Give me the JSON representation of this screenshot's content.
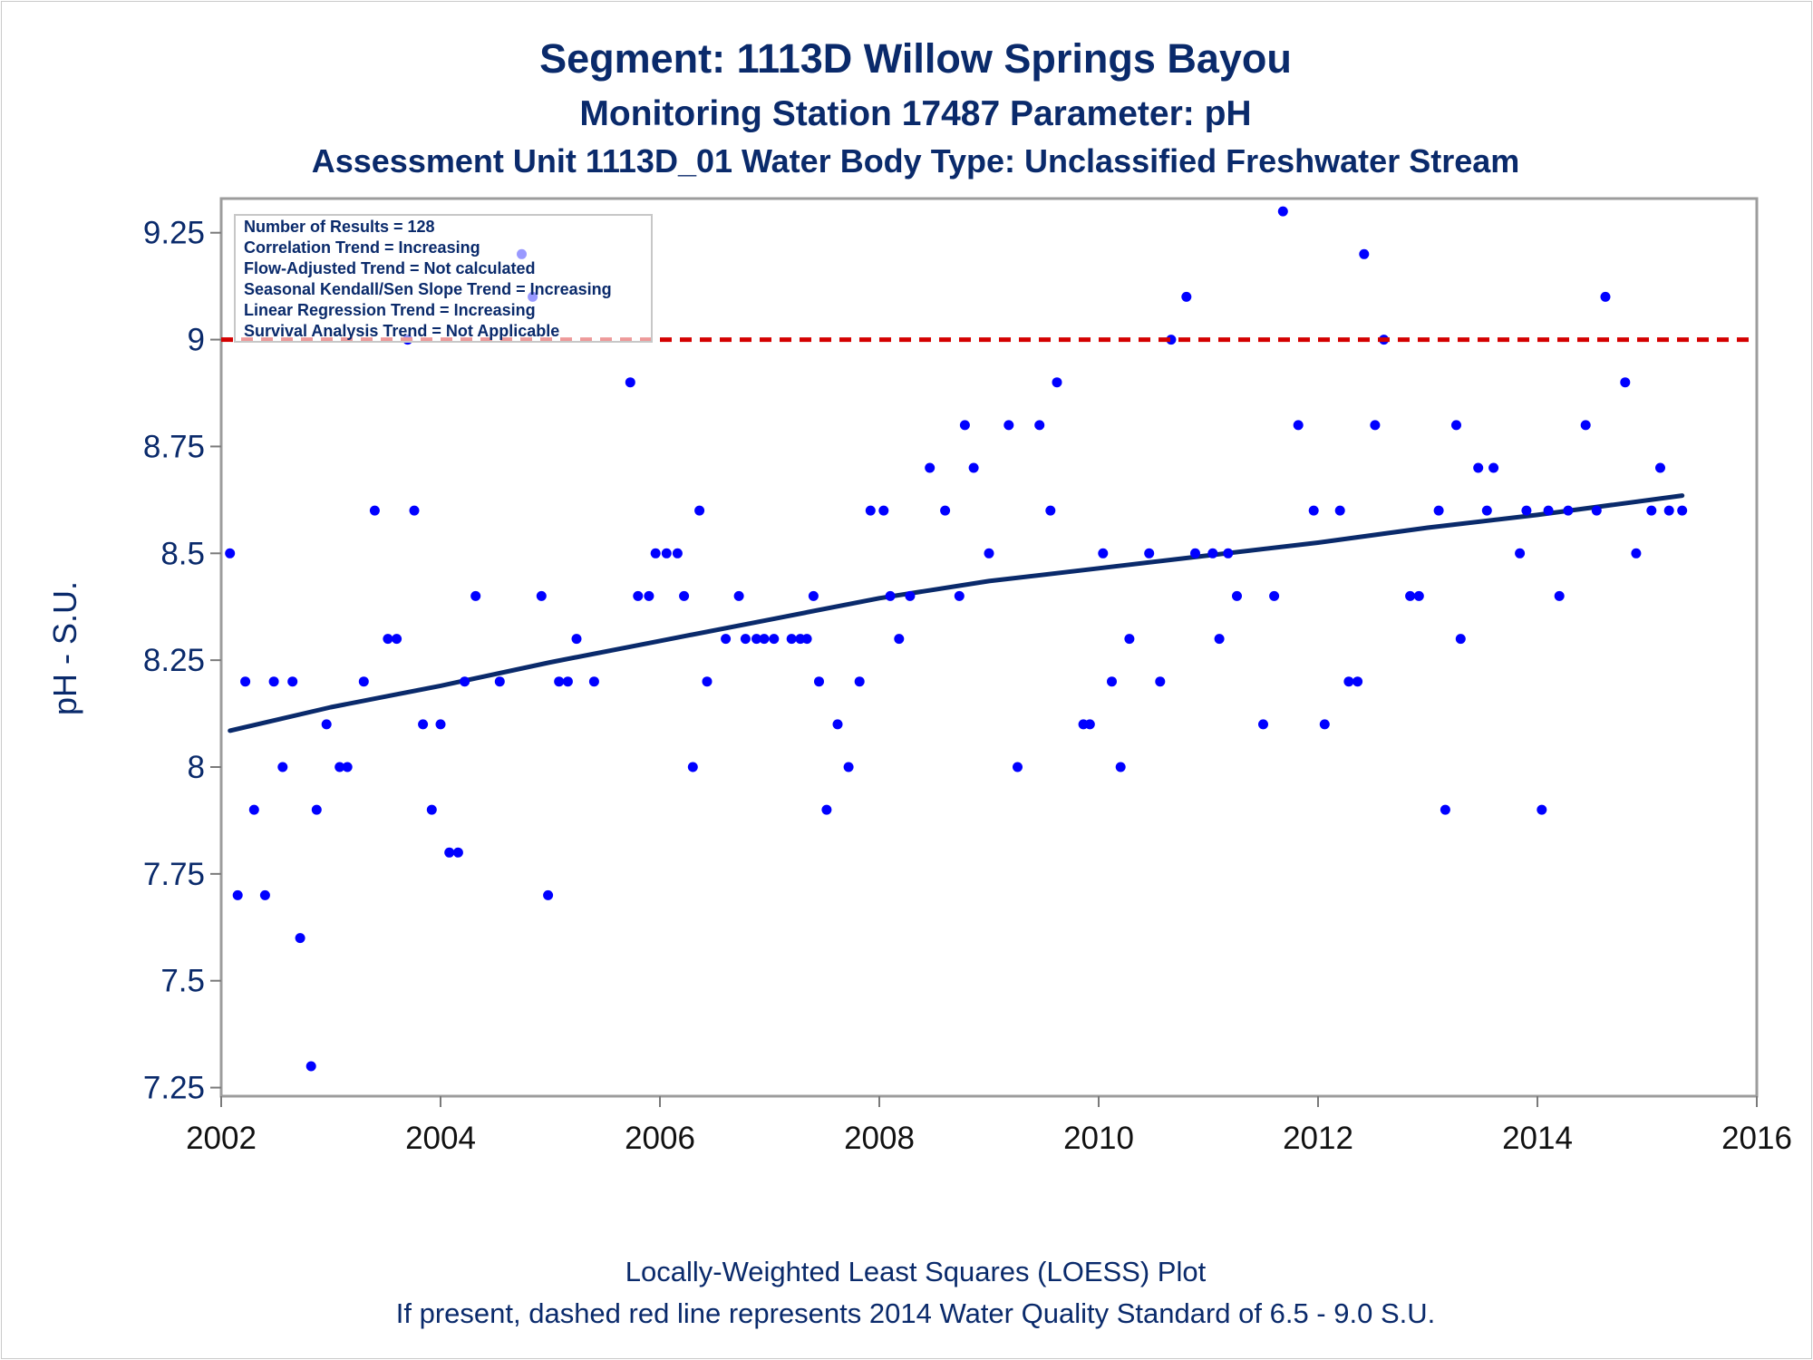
{
  "chart_data": {
    "type": "scatter",
    "title": "Segment: 1113D  Willow Springs Bayou",
    "subtitle": "Monitoring Station 17487 Parameter: pH",
    "subtitle2": "Assessment Unit 1113D_01   Water Body Type: Unclassified Freshwater Stream",
    "ylabel": "pH - S.U.",
    "xlabel": "",
    "xlim": [
      2002,
      2016
    ],
    "ylim": [
      7.23,
      9.33
    ],
    "xticks": [
      "2002",
      "2004",
      "2006",
      "2008",
      "2010",
      "2012",
      "2014",
      "2016"
    ],
    "yticks": [
      "7.25",
      "7.5",
      "7.75",
      "8",
      "8.25",
      "8.5",
      "8.75",
      "9",
      "9.25"
    ],
    "grid": false,
    "stats_box": [
      "Number of Results = 128",
      "Correlation Trend = Increasing",
      "Flow-Adjusted Trend = Not calculated",
      "Seasonal Kendall/Sen Slope Trend = Increasing",
      "Linear Regression Trend = Increasing",
      "Survival Analysis Trend = Not Applicable"
    ],
    "standard_line": {
      "y": 9.0,
      "color": "#d40000",
      "style": "dashed"
    },
    "series": [
      {
        "type": "scatter",
        "color": "#0000ff",
        "points": [
          [
            2002.08,
            8.5
          ],
          [
            2002.15,
            7.7
          ],
          [
            2002.22,
            8.2
          ],
          [
            2002.3,
            7.9
          ],
          [
            2002.4,
            7.7
          ],
          [
            2002.48,
            8.2
          ],
          [
            2002.56,
            8.0
          ],
          [
            2002.65,
            8.2
          ],
          [
            2002.72,
            7.6
          ],
          [
            2002.82,
            7.3
          ],
          [
            2002.87,
            7.9
          ],
          [
            2002.96,
            8.1
          ],
          [
            2003.08,
            8.0
          ],
          [
            2003.15,
            8.0
          ],
          [
            2003.3,
            8.2
          ],
          [
            2003.4,
            8.6
          ],
          [
            2003.52,
            8.3
          ],
          [
            2003.6,
            8.3
          ],
          [
            2003.7,
            9.0
          ],
          [
            2003.76,
            8.6
          ],
          [
            2003.84,
            8.1
          ],
          [
            2003.92,
            7.9
          ],
          [
            2004.0,
            8.1
          ],
          [
            2004.08,
            7.8
          ],
          [
            2004.16,
            7.8
          ],
          [
            2004.22,
            8.2
          ],
          [
            2004.32,
            8.4
          ],
          [
            2004.54,
            8.2
          ],
          [
            2004.74,
            9.2
          ],
          [
            2004.84,
            9.1
          ],
          [
            2004.92,
            8.4
          ],
          [
            2004.98,
            7.7
          ],
          [
            2005.08,
            8.2
          ],
          [
            2005.16,
            8.2
          ],
          [
            2005.24,
            8.3
          ],
          [
            2005.4,
            8.2
          ],
          [
            2005.73,
            8.9
          ],
          [
            2005.8,
            8.4
          ],
          [
            2005.9,
            8.4
          ],
          [
            2005.96,
            8.5
          ],
          [
            2006.06,
            8.5
          ],
          [
            2006.16,
            8.5
          ],
          [
            2006.22,
            8.4
          ],
          [
            2006.3,
            8.0
          ],
          [
            2006.36,
            8.6
          ],
          [
            2006.43,
            8.2
          ],
          [
            2006.6,
            8.3
          ],
          [
            2006.72,
            8.4
          ],
          [
            2006.78,
            8.3
          ],
          [
            2006.88,
            8.3
          ],
          [
            2006.95,
            8.3
          ],
          [
            2007.04,
            8.3
          ],
          [
            2007.2,
            8.3
          ],
          [
            2007.28,
            8.3
          ],
          [
            2007.34,
            8.3
          ],
          [
            2007.4,
            8.4
          ],
          [
            2007.45,
            8.2
          ],
          [
            2007.52,
            7.9
          ],
          [
            2007.62,
            8.1
          ],
          [
            2007.72,
            8.0
          ],
          [
            2007.82,
            8.2
          ],
          [
            2007.92,
            8.6
          ],
          [
            2008.04,
            8.6
          ],
          [
            2008.1,
            8.4
          ],
          [
            2008.18,
            8.3
          ],
          [
            2008.28,
            8.4
          ],
          [
            2008.46,
            8.7
          ],
          [
            2008.6,
            8.6
          ],
          [
            2008.73,
            8.4
          ],
          [
            2008.78,
            8.8
          ],
          [
            2008.86,
            8.7
          ],
          [
            2009.0,
            8.5
          ],
          [
            2009.18,
            8.8
          ],
          [
            2009.26,
            8.0
          ],
          [
            2009.46,
            8.8
          ],
          [
            2009.56,
            8.6
          ],
          [
            2009.62,
            8.9
          ],
          [
            2009.86,
            8.1
          ],
          [
            2009.92,
            8.1
          ],
          [
            2010.04,
            8.5
          ],
          [
            2010.12,
            8.2
          ],
          [
            2010.2,
            8.0
          ],
          [
            2010.28,
            8.3
          ],
          [
            2010.46,
            8.5
          ],
          [
            2010.56,
            8.2
          ],
          [
            2010.66,
            9.0
          ],
          [
            2010.8,
            9.1
          ],
          [
            2010.88,
            8.5
          ],
          [
            2011.04,
            8.5
          ],
          [
            2011.1,
            8.3
          ],
          [
            2011.18,
            8.5
          ],
          [
            2011.26,
            8.4
          ],
          [
            2011.5,
            8.1
          ],
          [
            2011.6,
            8.4
          ],
          [
            2011.68,
            9.3
          ],
          [
            2011.82,
            8.8
          ],
          [
            2011.96,
            8.6
          ],
          [
            2012.06,
            8.1
          ],
          [
            2012.2,
            8.6
          ],
          [
            2012.28,
            8.2
          ],
          [
            2012.36,
            8.2
          ],
          [
            2012.42,
            9.2
          ],
          [
            2012.52,
            8.8
          ],
          [
            2012.6,
            9.0
          ],
          [
            2012.84,
            8.4
          ],
          [
            2012.92,
            8.4
          ],
          [
            2013.1,
            8.6
          ],
          [
            2013.16,
            7.9
          ],
          [
            2013.26,
            8.8
          ],
          [
            2013.3,
            8.3
          ],
          [
            2013.46,
            8.7
          ],
          [
            2013.54,
            8.6
          ],
          [
            2013.6,
            8.7
          ],
          [
            2013.84,
            8.5
          ],
          [
            2013.9,
            8.6
          ],
          [
            2014.04,
            7.9
          ],
          [
            2014.1,
            8.6
          ],
          [
            2014.2,
            8.4
          ],
          [
            2014.28,
            8.6
          ],
          [
            2014.44,
            8.8
          ],
          [
            2014.54,
            8.6
          ],
          [
            2014.62,
            9.1
          ],
          [
            2014.8,
            8.9
          ],
          [
            2014.9,
            8.5
          ],
          [
            2015.04,
            8.6
          ],
          [
            2015.12,
            8.7
          ],
          [
            2015.2,
            8.6
          ],
          [
            2015.32,
            8.6
          ]
        ]
      },
      {
        "type": "line",
        "color": "#0a2a6b",
        "points": [
          [
            2002.08,
            8.085
          ],
          [
            2003.0,
            8.14
          ],
          [
            2004.0,
            8.19
          ],
          [
            2005.0,
            8.245
          ],
          [
            2006.0,
            8.295
          ],
          [
            2007.0,
            8.345
          ],
          [
            2008.0,
            8.395
          ],
          [
            2009.0,
            8.435
          ],
          [
            2010.0,
            8.465
          ],
          [
            2011.0,
            8.495
          ],
          [
            2012.0,
            8.525
          ],
          [
            2013.0,
            8.56
          ],
          [
            2014.0,
            8.59
          ],
          [
            2015.32,
            8.635
          ]
        ]
      }
    ],
    "footer": [
      "Locally-Weighted Least Squares (LOESS) Plot",
      "If present, dashed red line represents 2014 Water Quality Standard of 6.5 - 9.0 S.U."
    ]
  }
}
